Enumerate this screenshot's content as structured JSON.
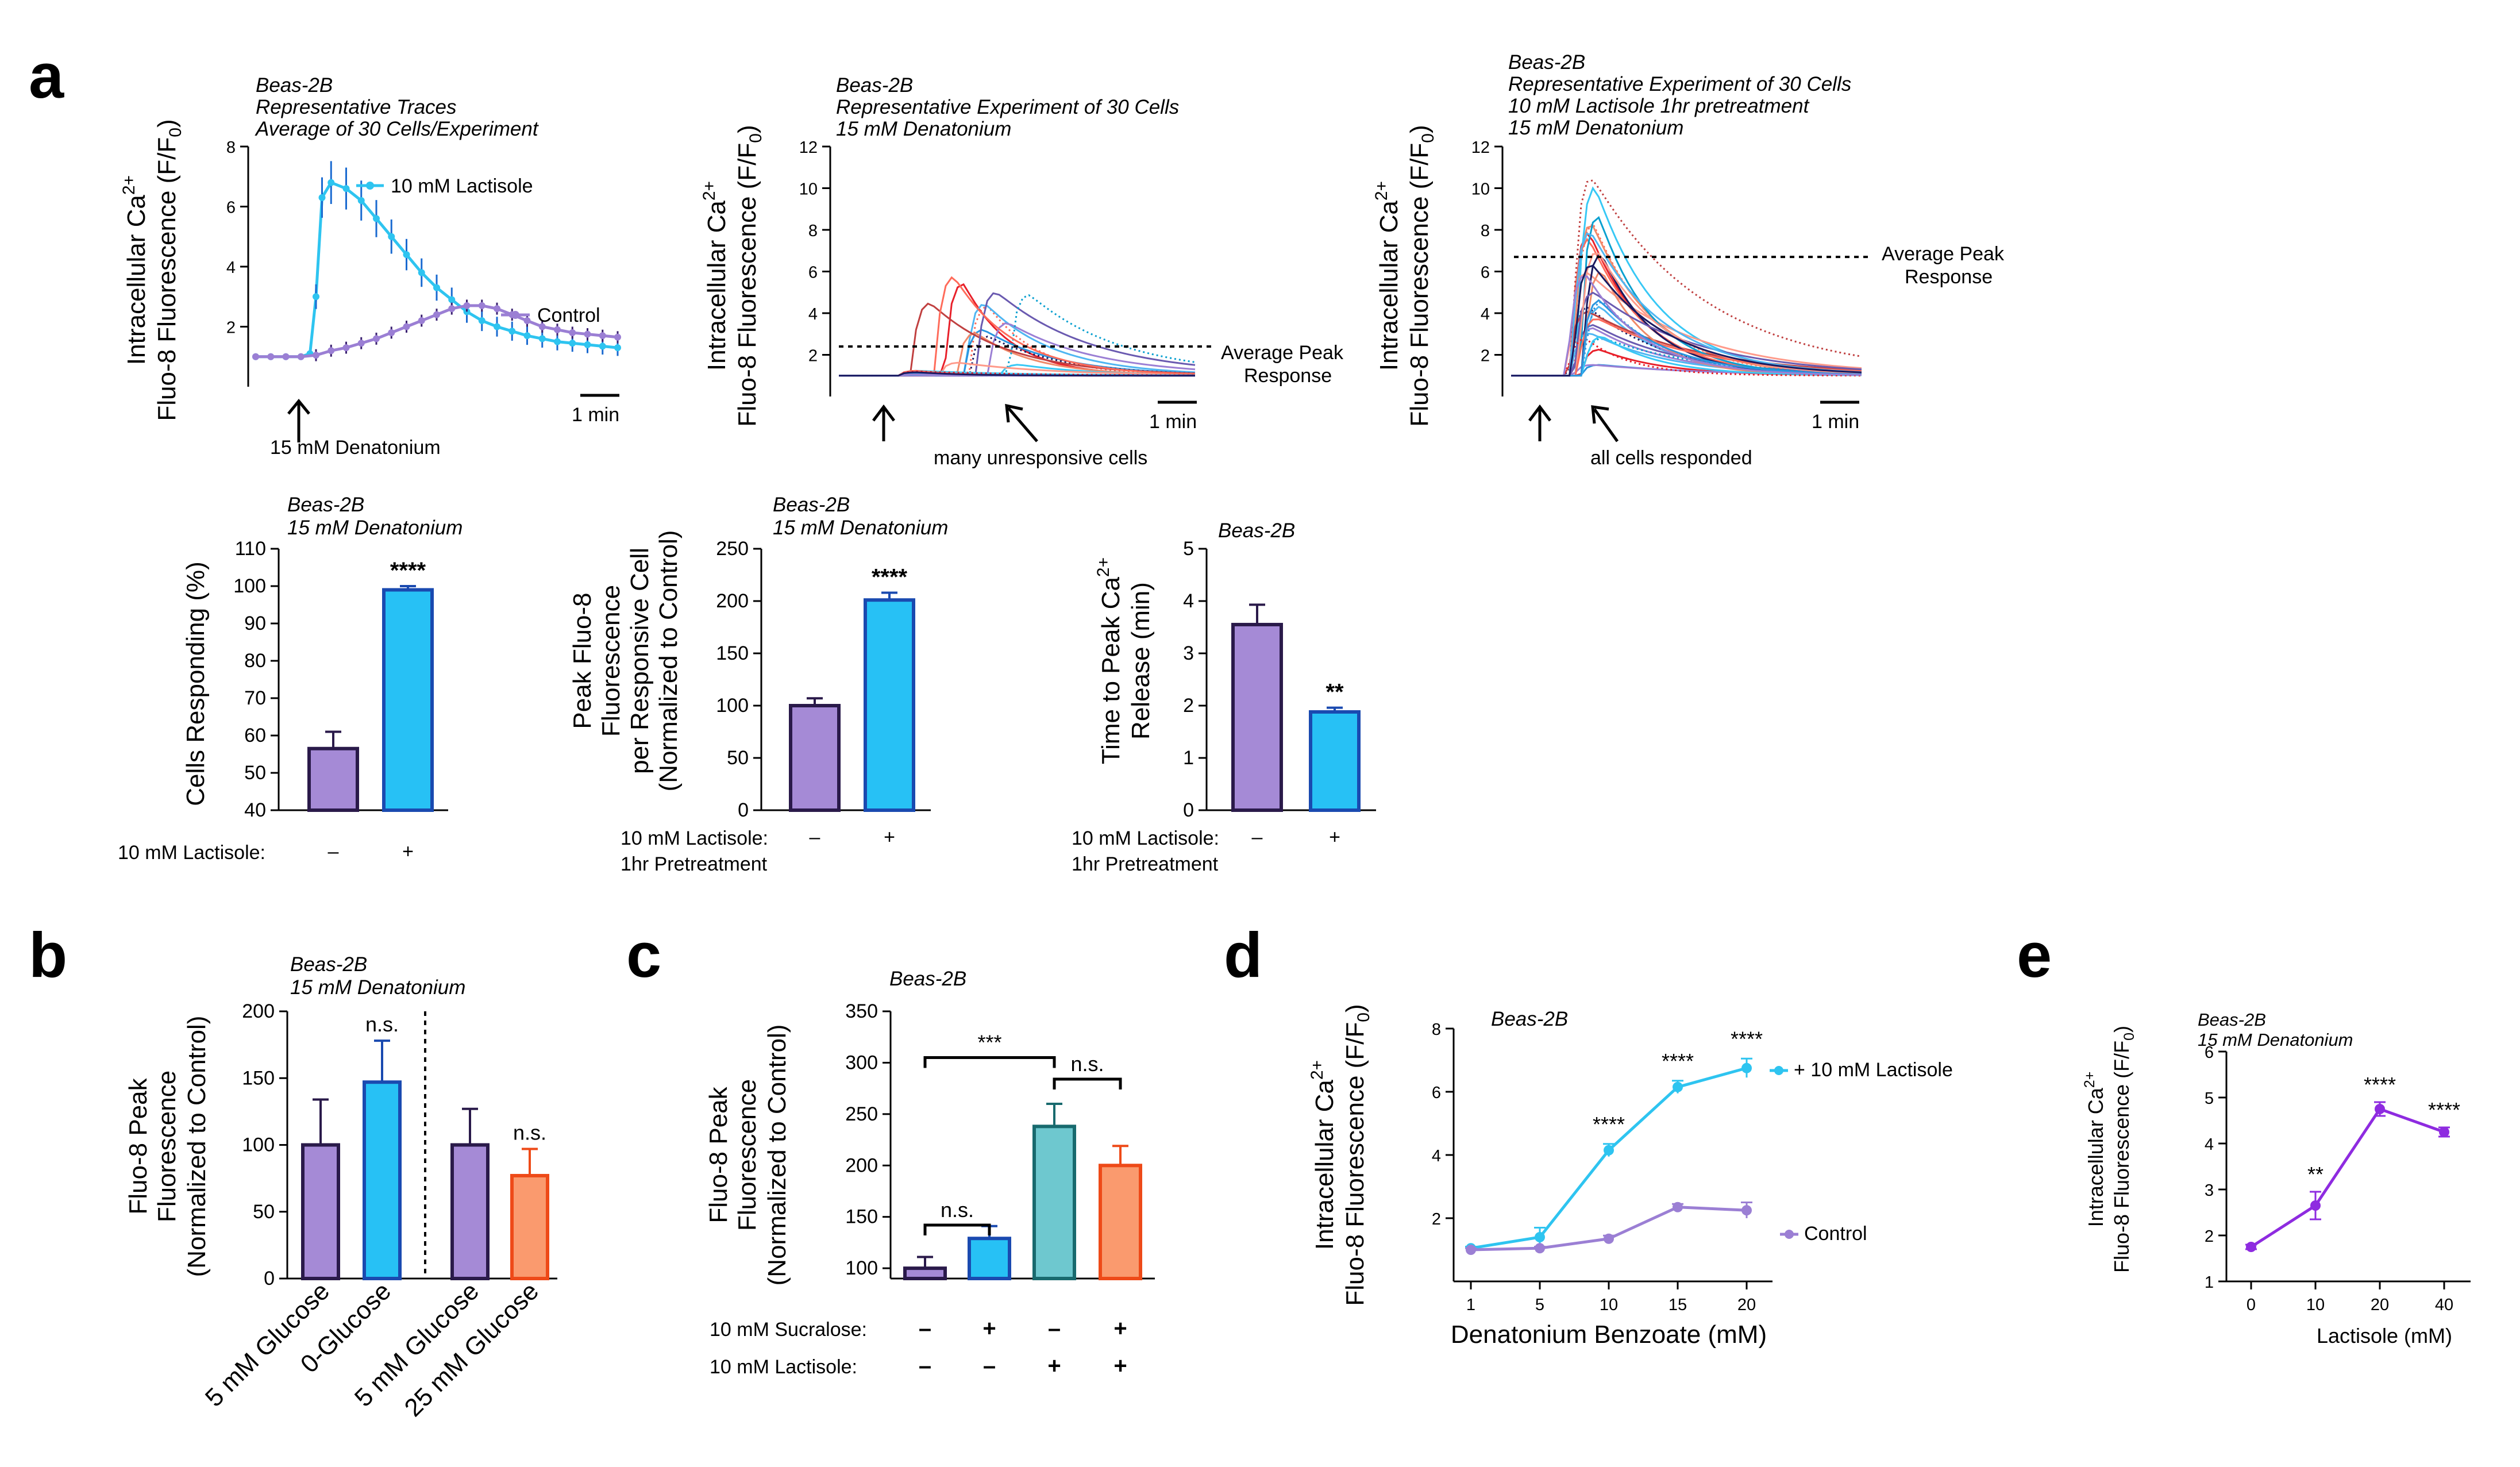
{
  "panel_labels": {
    "a": "a",
    "b": "b",
    "c": "c",
    "d": "d",
    "e": "e"
  },
  "common": {
    "ylabel_calcium_l1": "Intracellular Ca",
    "ylabel_calcium_sup": "2+",
    "ylabel_fluo_l2": "Fluo-8 Fluorescence (F/F",
    "ylabel_fluo_sub": "0",
    "ylabel_close": ")",
    "minus": "–",
    "plus": "+"
  },
  "chart_data": [
    {
      "id": "a1",
      "type": "line",
      "title_lines": [
        "Beas-2B",
        "Representative Traces",
        "Average of 30 Cells/Experiment"
      ],
      "ylim": [
        0,
        8
      ],
      "yticks": [
        2,
        4,
        6,
        8
      ],
      "series": [
        {
          "name": "10 mM Lactisole",
          "color": "#2ec4f0",
          "x": [
            0,
            0.5,
            1,
            1.5,
            1.8,
            2.0,
            2.2,
            2.5,
            3,
            3.5,
            4,
            4.5,
            5,
            5.5,
            6,
            6.5,
            7,
            7.5,
            8,
            8.5,
            9,
            9.5,
            10,
            10.5,
            11,
            11.5,
            12
          ],
          "y": [
            1.0,
            1.0,
            1.0,
            1.0,
            1.1,
            3.0,
            6.3,
            6.8,
            6.6,
            6.2,
            5.6,
            5.0,
            4.4,
            3.8,
            3.3,
            2.9,
            2.5,
            2.2,
            2.0,
            1.85,
            1.7,
            1.6,
            1.5,
            1.45,
            1.4,
            1.35,
            1.3
          ]
        },
        {
          "name": "Control",
          "color": "#9b7fd4",
          "x": [
            0,
            0.5,
            1,
            1.5,
            2.0,
            2.5,
            3,
            3.5,
            4,
            4.5,
            5,
            5.5,
            6,
            6.5,
            7,
            7.5,
            8,
            8.5,
            9,
            9.5,
            10,
            10.5,
            11,
            11.5,
            12
          ],
          "y": [
            1.0,
            1.0,
            1.0,
            1.0,
            1.05,
            1.2,
            1.3,
            1.45,
            1.6,
            1.8,
            2.0,
            2.2,
            2.4,
            2.6,
            2.7,
            2.7,
            2.6,
            2.4,
            2.2,
            2.0,
            1.9,
            1.8,
            1.75,
            1.7,
            1.65
          ]
        }
      ],
      "annotations": [
        "15 mM Denatonium",
        "1 min"
      ]
    },
    {
      "id": "a2",
      "type": "line",
      "title_lines": [
        "Beas-2B",
        "Representative Experiment of 30 Cells",
        "15 mM Denatonium"
      ],
      "ylim": [
        0,
        12
      ],
      "yticks": [
        2,
        4,
        6,
        8,
        10,
        12
      ],
      "average_peak": 2.4,
      "annotations": [
        "Average Peak",
        "Response",
        "many unresponsive cells",
        "1 min"
      ]
    },
    {
      "id": "a3",
      "type": "line",
      "title_lines": [
        "Beas-2B",
        "Representative Experiment of 30 Cells",
        "10 mM Lactisole 1hr pretreatment",
        "15 mM Denatonium"
      ],
      "ylim": [
        0,
        12
      ],
      "yticks": [
        2,
        4,
        6,
        8,
        10,
        12
      ],
      "average_peak": 6.7,
      "annotations": [
        "Average Peak",
        "Response",
        "all cells responded",
        "1 min"
      ]
    },
    {
      "id": "a4",
      "type": "bar",
      "title_lines": [
        "Beas-2B",
        "15 mM Denatonium"
      ],
      "ylabel": "Cells Responding (%)",
      "ylim": [
        40,
        110
      ],
      "yticks": [
        40,
        50,
        60,
        70,
        80,
        90,
        100,
        110
      ],
      "categories": [
        "Control",
        "10 mM Lactisole"
      ],
      "values": [
        56.5,
        99.0
      ],
      "errors": [
        4.5,
        1.0
      ],
      "colors": [
        "#a58ad6",
        "#27c1f5"
      ],
      "edges": [
        "#2a1a4a",
        "#1a4ab0"
      ],
      "significance": "****",
      "xrow_label": "10 mM Lactisole:",
      "xrow_signs": [
        "–",
        "+"
      ]
    },
    {
      "id": "a5",
      "type": "bar",
      "title_lines": [
        "Beas-2B",
        "15 mM Denatonium"
      ],
      "ylabel_lines": [
        "Peak Fluo-8",
        "Fluorescence",
        "per Responsive Cell",
        "(Normalized to Control)"
      ],
      "ylim": [
        0,
        250
      ],
      "yticks": [
        0,
        50,
        100,
        150,
        200,
        250
      ],
      "categories": [
        "Control",
        "10 mM Lactisole"
      ],
      "values": [
        100,
        201
      ],
      "errors": [
        7,
        7
      ],
      "colors": [
        "#a58ad6",
        "#27c1f5"
      ],
      "edges": [
        "#2a1a4a",
        "#1a4ab0"
      ],
      "significance": "****",
      "xrow_label": [
        "10 mM Lactisole:",
        "1hr Pretreatment"
      ],
      "xrow_signs": [
        "–",
        "+"
      ]
    },
    {
      "id": "a6",
      "type": "bar",
      "title_lines": [
        "Beas-2B"
      ],
      "ylabel_l1": "Time to Peak Ca",
      "ylabel_sup": "2+",
      "ylabel_l2": "Release (min)",
      "ylim": [
        0,
        5
      ],
      "yticks": [
        0,
        1,
        2,
        3,
        4,
        5
      ],
      "categories": [
        "Control",
        "10 mM Lactisole"
      ],
      "values": [
        3.55,
        1.88
      ],
      "errors": [
        0.38,
        0.08
      ],
      "colors": [
        "#a58ad6",
        "#27c1f5"
      ],
      "edges": [
        "#2a1a4a",
        "#1a4ab0"
      ],
      "significance": "**",
      "xrow_label": [
        "10 mM Lactisole:",
        "1hr Pretreatment"
      ],
      "xrow_signs": [
        "–",
        "+"
      ]
    },
    {
      "id": "b",
      "type": "bar",
      "title_lines": [
        "Beas-2B",
        "15 mM Denatonium"
      ],
      "ylabel_lines": [
        "Fluo-8 Peak",
        "Fluorescence",
        "(Normalized to Control)"
      ],
      "ylim": [
        0,
        200
      ],
      "yticks": [
        0,
        50,
        100,
        150,
        200
      ],
      "categories": [
        "5 mM Glucose",
        "0-Glucose",
        "5 mM Glucose",
        "25 mM Glucose"
      ],
      "values": [
        100,
        147,
        100,
        77
      ],
      "errors": [
        34,
        31,
        27,
        20
      ],
      "colors": [
        "#a58ad6",
        "#27c1f5",
        "#a58ad6",
        "#fa9a6e"
      ],
      "edges": [
        "#2a1a4a",
        "#1a4ab0",
        "#2a1a4a",
        "#ee4a18"
      ],
      "significance": [
        "n.s.",
        "n.s."
      ]
    },
    {
      "id": "c",
      "type": "bar",
      "title_lines": [
        "Beas-2B"
      ],
      "ylabel_lines": [
        "Fluo-8 Peak",
        "Fluorescence",
        "(Normalized to Control)"
      ],
      "ylim": [
        90,
        350
      ],
      "yticks": [
        100,
        150,
        200,
        250,
        300,
        350
      ],
      "categories": [
        "Control",
        "Sucralose",
        "Lactisole",
        "Sucralose + Lactisole"
      ],
      "values": [
        100,
        129,
        238,
        200
      ],
      "errors": [
        11,
        12,
        22,
        19
      ],
      "colors": [
        "#a58ad6",
        "#27c1f5",
        "#6ec8cf",
        "#fa9a6e"
      ],
      "edges": [
        "#2a1a4a",
        "#1a4ab0",
        "#186a6e",
        "#ee4a18"
      ],
      "significance": [
        "n.s.",
        "***",
        "n.s."
      ],
      "row1_label": "10 mM Sucralose:",
      "row1_signs": [
        "–",
        "+",
        "–",
        "+"
      ],
      "row2_label": "10 mM Lactisole:",
      "row2_signs": [
        "–",
        "–",
        "+",
        "+"
      ]
    },
    {
      "id": "d",
      "type": "line",
      "title_lines": [
        "Beas-2B"
      ],
      "xlabel": "Denatonium Benzoate (mM)",
      "ylim": [
        0,
        8
      ],
      "yticks": [
        2,
        4,
        6,
        8
      ],
      "categories": [
        "1",
        "5",
        "10",
        "15",
        "20"
      ],
      "series": [
        {
          "name": "+ 10 mM Lactisole",
          "color": "#2ec4f0",
          "values": [
            1.05,
            1.4,
            4.15,
            6.15,
            6.75
          ],
          "errors": [
            0.05,
            0.3,
            0.2,
            0.2,
            0.3
          ]
        },
        {
          "name": "Control",
          "color": "#9b7fd4",
          "values": [
            1.0,
            1.05,
            1.35,
            2.35,
            2.25
          ],
          "errors": [
            0.05,
            0.05,
            0.1,
            0.1,
            0.25
          ]
        }
      ],
      "significance": [
        "****",
        "****",
        "****"
      ]
    },
    {
      "id": "e",
      "type": "line",
      "title_lines": [
        "Beas-2B",
        "15 mM Denatonium"
      ],
      "xlabel": "Lactisole (mM)",
      "ylim": [
        1,
        6
      ],
      "yticks": [
        1,
        2,
        3,
        4,
        5,
        6
      ],
      "categories": [
        "0",
        "10",
        "20",
        "40"
      ],
      "series": [
        {
          "name": "Lactisole",
          "color": "#8e2be0",
          "values": [
            1.75,
            2.65,
            4.75,
            4.25
          ],
          "errors": [
            0.05,
            0.3,
            0.15,
            0.1
          ]
        }
      ],
      "significance": [
        "**",
        "****",
        "****"
      ]
    }
  ]
}
